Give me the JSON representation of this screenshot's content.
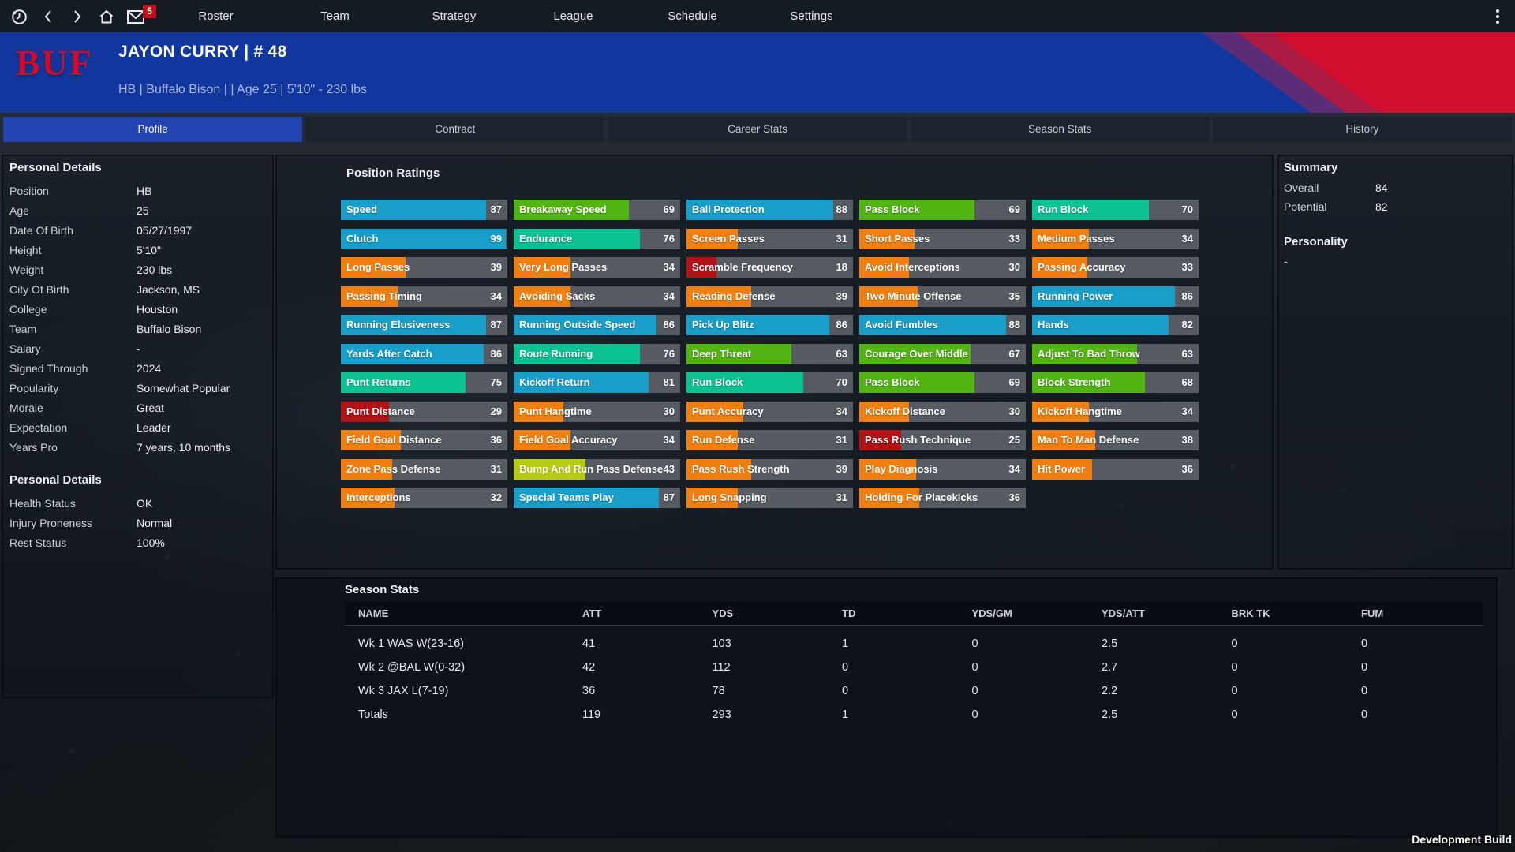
{
  "colors": {
    "header_blue": "#11379e",
    "accent_red": "#d20e2f",
    "stripe_purple": "#5b2d79",
    "stripe_maroon": "#ad1b42",
    "tab_active_blue": "#2343b0",
    "badge_red": "#c3111c",
    "bar_track_gray": "#565b62",
    "tiers": [
      {
        "max": 29,
        "color": "#b11216"
      },
      {
        "max": 39,
        "color": "#ef7f11"
      },
      {
        "max": 62,
        "color": "#b7cb15"
      },
      {
        "max": 69,
        "color": "#51b413"
      },
      {
        "max": 79,
        "color": "#0cc293"
      },
      {
        "max": 100,
        "color": "#189ec9"
      }
    ]
  },
  "nav": {
    "items": [
      "Roster",
      "Team",
      "Strategy",
      "League",
      "Schedule",
      "Settings"
    ],
    "mail_badge": "5"
  },
  "header": {
    "team_abbr": "BUF",
    "title": "JAYON CURRY | # 48",
    "subtitle": "HB | Buffalo Bison |  | Age 25 | 5'10\" - 230 lbs"
  },
  "tabs": [
    {
      "label": "Profile",
      "active": true
    },
    {
      "label": "Contract",
      "active": false
    },
    {
      "label": "Career Stats",
      "active": false
    },
    {
      "label": "Season Stats",
      "active": false
    },
    {
      "label": "History",
      "active": false
    }
  ],
  "personal_details": {
    "title": "Personal Details",
    "rows": [
      [
        "Position",
        "HB"
      ],
      [
        "Age",
        "25"
      ],
      [
        "Date Of Birth",
        "05/27/1997"
      ],
      [
        "Height",
        "5'10\""
      ],
      [
        "Weight",
        "230 lbs"
      ],
      [
        "City Of Birth",
        "Jackson, MS"
      ],
      [
        "College",
        "Houston"
      ],
      [
        "Team",
        "Buffalo Bison"
      ],
      [
        "Salary",
        "-"
      ],
      [
        "Signed Through",
        "2024"
      ],
      [
        "Popularity",
        "Somewhat Popular"
      ],
      [
        "Morale",
        "Great"
      ],
      [
        "Expectation",
        "Leader"
      ],
      [
        "Years Pro",
        "7 years, 10 months"
      ]
    ]
  },
  "personal_details_2": {
    "title": "Personal Details",
    "rows": [
      [
        "Health Status",
        "OK"
      ],
      [
        "Injury Proneness",
        "Normal"
      ],
      [
        "Rest Status",
        "100%"
      ]
    ]
  },
  "ratings": {
    "title": "Position Ratings",
    "columns": [
      [
        {
          "label": "Speed",
          "value": 87
        },
        {
          "label": "Clutch",
          "value": 99
        },
        {
          "label": "Long Passes",
          "value": 39
        },
        {
          "label": "Passing Timing",
          "value": 34
        },
        {
          "label": "Running Elusiveness",
          "value": 87
        },
        {
          "label": "Yards After Catch",
          "value": 86
        },
        {
          "label": "Punt Returns",
          "value": 75
        },
        {
          "label": "Punt Distance",
          "value": 29
        },
        {
          "label": "Field Goal Distance",
          "value": 36
        },
        {
          "label": "Zone Pass Defense",
          "value": 31
        },
        {
          "label": "Interceptions",
          "value": 32
        }
      ],
      [
        {
          "label": "Breakaway Speed",
          "value": 69
        },
        {
          "label": "Endurance",
          "value": 76
        },
        {
          "label": "Very Long Passes",
          "value": 34
        },
        {
          "label": "Avoiding Sacks",
          "value": 34
        },
        {
          "label": "Running Outside Speed",
          "value": 86
        },
        {
          "label": "Route Running",
          "value": 76
        },
        {
          "label": "Kickoff Return",
          "value": 81
        },
        {
          "label": "Punt Hangtime",
          "value": 30
        },
        {
          "label": "Field Goal Accuracy",
          "value": 34
        },
        {
          "label": "Bump And Run Pass Defense",
          "value": 43
        },
        {
          "label": "Special Teams Play",
          "value": 87
        }
      ],
      [
        {
          "label": "Ball Protection",
          "value": 88
        },
        {
          "label": "Screen Passes",
          "value": 31
        },
        {
          "label": "Scramble Frequency",
          "value": 18
        },
        {
          "label": "Reading Defense",
          "value": 39
        },
        {
          "label": "Pick Up Blitz",
          "value": 86
        },
        {
          "label": "Deep Threat",
          "value": 63
        },
        {
          "label": "Run Block",
          "value": 70
        },
        {
          "label": "Punt Accuracy",
          "value": 34
        },
        {
          "label": "Run Defense",
          "value": 31
        },
        {
          "label": "Pass Rush Strength",
          "value": 39
        },
        {
          "label": "Long Snapping",
          "value": 31
        }
      ],
      [
        {
          "label": "Pass Block",
          "value": 69
        },
        {
          "label": "Short Passes",
          "value": 33
        },
        {
          "label": "Avoid Interceptions",
          "value": 30
        },
        {
          "label": "Two Minute Offense",
          "value": 35
        },
        {
          "label": "Avoid Fumbles",
          "value": 88
        },
        {
          "label": "Courage Over Middle",
          "value": 67
        },
        {
          "label": "Pass Block",
          "value": 69
        },
        {
          "label": "Kickoff Distance",
          "value": 30
        },
        {
          "label": "Pass Rush Technique",
          "value": 25
        },
        {
          "label": "Play Diagnosis",
          "value": 34
        },
        {
          "label": "Holding For Placekicks",
          "value": 36
        }
      ],
      [
        {
          "label": "Run Block",
          "value": 70
        },
        {
          "label": "Medium Passes",
          "value": 34
        },
        {
          "label": "Passing Accuracy",
          "value": 33
        },
        {
          "label": "Running Power",
          "value": 86
        },
        {
          "label": "Hands",
          "value": 82
        },
        {
          "label": "Adjust To Bad Throw",
          "value": 63
        },
        {
          "label": "Block Strength",
          "value": 68
        },
        {
          "label": "Kickoff Hangtime",
          "value": 34
        },
        {
          "label": "Man To Man Defense",
          "value": 38
        },
        {
          "label": "Hit Power",
          "value": 36
        }
      ]
    ]
  },
  "summary": {
    "title": "Summary",
    "rows": [
      [
        "Overall",
        "84"
      ],
      [
        "Potential",
        "82"
      ]
    ],
    "personality_title": "Personality",
    "personality_value": "-"
  },
  "season_stats": {
    "title": "Season Stats",
    "headers": [
      "NAME",
      "ATT",
      "YDS",
      "TD",
      "YDS/GM",
      "YDS/ATT",
      "BRK TK",
      "FUM"
    ],
    "rows": [
      [
        "Wk 1 WAS W(23-16)",
        "41",
        "103",
        "1",
        "0",
        "2.5",
        "0",
        "0"
      ],
      [
        "Wk 2 @BAL W(0-32)",
        "42",
        "112",
        "0",
        "0",
        "2.7",
        "0",
        "0"
      ],
      [
        "Wk 3 JAX L(7-19)",
        "36",
        "78",
        "0",
        "0",
        "2.2",
        "0",
        "0"
      ],
      [
        "Totals",
        "119",
        "293",
        "1",
        "0",
        "2.5",
        "0",
        "0"
      ]
    ]
  },
  "footer": {
    "build_label": "Development Build"
  }
}
